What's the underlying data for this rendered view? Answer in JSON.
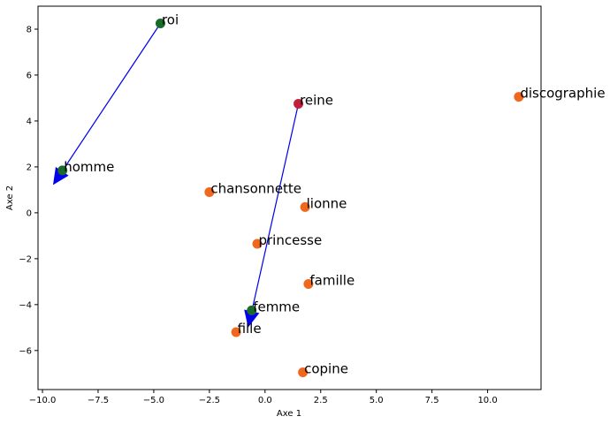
{
  "chart_data": {
    "type": "scatter",
    "title": "",
    "xlabel": "Axe 1",
    "ylabel": "Axe 2",
    "xlim": [
      -10.2,
      12.4
    ],
    "ylim": [
      -7.7,
      9.0
    ],
    "xticks": [
      -10.0,
      -7.5,
      -5.0,
      -2.5,
      0.0,
      2.5,
      5.0,
      7.5,
      10.0
    ],
    "xtick_labels": [
      "−10.0",
      "−7.5",
      "−5.0",
      "−2.5",
      "0.0",
      "2.5",
      "5.0",
      "7.5",
      "10.0"
    ],
    "yticks": [
      -6,
      -4,
      -2,
      0,
      2,
      4,
      6,
      8
    ],
    "ytick_labels": [
      "−6",
      "−4",
      "−2",
      "0",
      "2",
      "4",
      "6",
      "8"
    ],
    "grid": false,
    "points": [
      {
        "label": "roi",
        "x": -4.7,
        "y": 8.25,
        "color": "#1a6b2a"
      },
      {
        "label": "homme",
        "x": -9.1,
        "y": 1.85,
        "color": "#1a6b2a"
      },
      {
        "label": "reine",
        "x": 1.5,
        "y": 4.75,
        "color": "#c2203a"
      },
      {
        "label": "femme",
        "x": -0.6,
        "y": -4.25,
        "color": "#1a6b2a"
      },
      {
        "label": "discographie",
        "x": 11.4,
        "y": 5.05,
        "color": "#f0671e"
      },
      {
        "label": "chansonnette",
        "x": -2.5,
        "y": 0.9,
        "color": "#f0671e"
      },
      {
        "label": "lionne",
        "x": 1.8,
        "y": 0.25,
        "color": "#f0671e"
      },
      {
        "label": "princesse",
        "x": -0.35,
        "y": -1.35,
        "color": "#f0671e"
      },
      {
        "label": "famille",
        "x": 1.95,
        "y": -3.1,
        "color": "#f0671e"
      },
      {
        "label": "fille",
        "x": -1.3,
        "y": -5.2,
        "color": "#f0671e"
      },
      {
        "label": "copine",
        "x": 1.7,
        "y": -6.95,
        "color": "#f0671e"
      }
    ],
    "arrows": [
      {
        "from": [
          -4.7,
          8.25
        ],
        "to": [
          -9.5,
          1.25
        ],
        "color": "#0000ee"
      },
      {
        "from": [
          1.5,
          4.75
        ],
        "to": [
          -0.75,
          -4.95
        ],
        "color": "#0000ee"
      }
    ]
  }
}
